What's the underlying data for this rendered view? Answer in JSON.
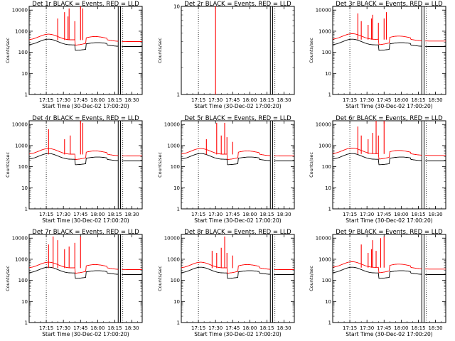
{
  "colors": {
    "events": "#000000",
    "lld": "#ff0000",
    "background": "#ffffff"
  },
  "x_axis": {
    "label": "Start Time (30-Dec-02 17:00:20)",
    "tick_labels": [
      "17:15",
      "17:30",
      "17:45",
      "18:00",
      "18:15",
      "18:30"
    ],
    "tick_minutes": [
      15,
      30,
      45,
      60,
      75,
      90
    ],
    "range_minutes": [
      0,
      99
    ],
    "dotted_marker_minutes": 15,
    "solid_marker_minutes": [
      78,
      80
    ],
    "dotted_marker_right_minutes": 82
  },
  "y_axis": {
    "label": "Counts/sec",
    "scale": "log",
    "tick_labels": [
      "1",
      "10",
      "100",
      "1000",
      "10000"
    ]
  },
  "chart_data": [
    {
      "type": "line",
      "title": "Det 1r BLACK = Events, RED = LLD",
      "ylim": [
        1,
        15000
      ],
      "baseline_events": 220,
      "baseline_lld": 380,
      "spikes_lld": [
        [
          25,
          4000
        ],
        [
          31,
          8000
        ],
        [
          34,
          5000
        ],
        [
          35,
          12000
        ],
        [
          40,
          3000
        ],
        [
          45,
          15000
        ],
        [
          47,
          12000
        ]
      ],
      "series": [
        {
          "name": "Events"
        },
        {
          "name": "LLD"
        }
      ]
    },
    {
      "type": "line",
      "title": "Det 2r BLACK = Events, RED = LLD",
      "ylim": [
        1,
        10
      ],
      "baseline_events": null,
      "baseline_lld": null,
      "spikes_lld": [
        [
          30,
          10
        ]
      ],
      "series": [
        {
          "name": "Events"
        },
        {
          "name": "LLD"
        }
      ]
    },
    {
      "type": "line",
      "title": "Det 3r BLACK = Events, RED = LLD",
      "ylim": [
        1,
        15000
      ],
      "baseline_events": 220,
      "baseline_lld": 400,
      "spikes_lld": [
        [
          22,
          7000
        ],
        [
          25,
          3000
        ],
        [
          31,
          2000
        ],
        [
          34,
          4000
        ],
        [
          35,
          6000
        ],
        [
          40,
          2500
        ],
        [
          45,
          4000
        ],
        [
          47,
          8000
        ]
      ],
      "series": [
        {
          "name": "Events"
        },
        {
          "name": "LLD"
        }
      ]
    },
    {
      "type": "line",
      "title": "Det 4r BLACK = Events, RED = LLD",
      "ylim": [
        1,
        15000
      ],
      "baseline_events": 220,
      "baseline_lld": 380,
      "spikes_lld": [
        [
          17,
          6000
        ],
        [
          31,
          2000
        ],
        [
          36,
          3000
        ],
        [
          45,
          15000
        ],
        [
          47,
          12000
        ]
      ],
      "series": [
        {
          "name": "Events"
        },
        {
          "name": "LLD"
        }
      ]
    },
    {
      "type": "line",
      "title": "Det 5r BLACK = Events, RED = LLD",
      "ylim": [
        1,
        15000
      ],
      "baseline_events": 220,
      "baseline_lld": 380,
      "spikes_lld": [
        [
          22,
          2000
        ],
        [
          31,
          12000
        ],
        [
          35,
          3000
        ],
        [
          38,
          12000
        ],
        [
          40,
          2500
        ],
        [
          45,
          1500
        ]
      ],
      "series": [
        {
          "name": "Events"
        },
        {
          "name": "LLD"
        }
      ]
    },
    {
      "type": "line",
      "title": "Det 6r BLACK = Events, RED = LLD",
      "ylim": [
        1,
        15000
      ],
      "baseline_events": 220,
      "baseline_lld": 400,
      "spikes_lld": [
        [
          22,
          8000
        ],
        [
          25,
          3000
        ],
        [
          31,
          2000
        ],
        [
          35,
          4000
        ],
        [
          38,
          15000
        ],
        [
          40,
          3000
        ],
        [
          45,
          15000
        ]
      ],
      "series": [
        {
          "name": "Events"
        },
        {
          "name": "LLD"
        }
      ]
    },
    {
      "type": "line",
      "title": "Det 7r BLACK = Events, RED = LLD",
      "ylim": [
        1,
        15000
      ],
      "baseline_events": 220,
      "baseline_lld": 380,
      "spikes_lld": [
        [
          17,
          5000
        ],
        [
          21,
          12000
        ],
        [
          25,
          8000
        ],
        [
          31,
          3000
        ],
        [
          35,
          4000
        ],
        [
          40,
          6000
        ],
        [
          45,
          12000
        ]
      ],
      "series": [
        {
          "name": "Events"
        },
        {
          "name": "LLD"
        }
      ]
    },
    {
      "type": "line",
      "title": "Det 8r BLACK = Events, RED = LLD",
      "ylim": [
        1,
        15000
      ],
      "baseline_events": 220,
      "baseline_lld": 380,
      "spikes_lld": [
        [
          27,
          2500
        ],
        [
          31,
          2000
        ],
        [
          35,
          3500
        ],
        [
          38,
          12000
        ],
        [
          40,
          2000
        ],
        [
          45,
          1500
        ]
      ],
      "series": [
        {
          "name": "Events"
        },
        {
          "name": "LLD"
        }
      ]
    },
    {
      "type": "line",
      "title": "Det 9r BLACK = Events, RED = LLD",
      "ylim": [
        1,
        15000
      ],
      "baseline_events": 220,
      "baseline_lld": 400,
      "spikes_lld": [
        [
          25,
          5000
        ],
        [
          31,
          2000
        ],
        [
          34,
          3000
        ],
        [
          35,
          8000
        ],
        [
          38,
          2500
        ],
        [
          42,
          10000
        ],
        [
          45,
          12000
        ]
      ],
      "series": [
        {
          "name": "Events"
        },
        {
          "name": "LLD"
        }
      ]
    }
  ]
}
